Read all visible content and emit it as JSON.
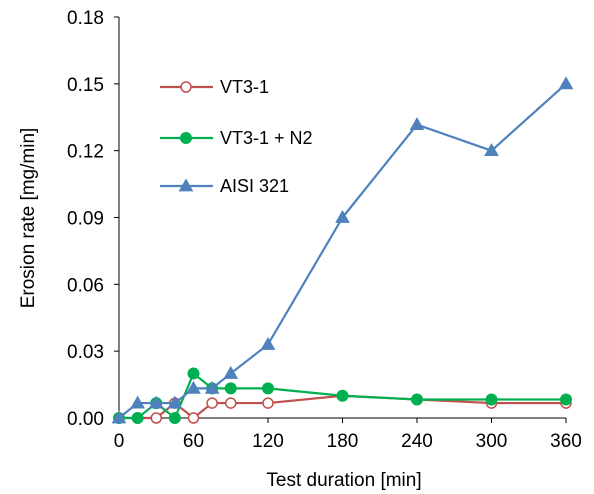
{
  "chart_data": {
    "type": "line",
    "title": "",
    "xlabel": "Test duration [min]",
    "ylabel": "Erosion rate [mg/min]",
    "xlim": [
      0,
      360
    ],
    "ylim": [
      0,
      0.18
    ],
    "x_ticks": [
      0,
      60,
      120,
      180,
      240,
      300,
      360
    ],
    "x_tick_labels": [
      "0",
      "60",
      "120",
      "180",
      "240",
      "300",
      "360"
    ],
    "y_ticks": [
      0.0,
      0.03,
      0.06,
      0.09,
      0.12,
      0.15,
      0.18
    ],
    "y_tick_labels": [
      "0.00",
      "0.03",
      "0.06",
      "0.09",
      "0.12",
      "0.15",
      "0.18"
    ],
    "grid": false,
    "legend_position": "left",
    "series": [
      {
        "name": "VT3-1",
        "color": "#C0504D",
        "marker": "open-circle",
        "x": [
          0,
          15,
          30,
          45,
          60,
          75,
          90,
          120,
          180,
          240,
          300,
          360
        ],
        "y": [
          0.0,
          0.0,
          0.0,
          0.0067,
          0.0,
          0.0067,
          0.0067,
          0.0067,
          0.01,
          0.0083,
          0.0067,
          0.0067
        ]
      },
      {
        "name": "VT3-1 + N2",
        "color": "#00B050",
        "marker": "filled-circle",
        "x": [
          0,
          15,
          30,
          45,
          60,
          75,
          90,
          120,
          180,
          240,
          300,
          360
        ],
        "y": [
          0.0,
          0.0,
          0.0067,
          0.0,
          0.02,
          0.0133,
          0.0133,
          0.0133,
          0.01,
          0.0083,
          0.0083,
          0.0083
        ]
      },
      {
        "name": "AISI 321",
        "color": "#4F81BD",
        "marker": "filled-triangle",
        "x": [
          0,
          15,
          30,
          45,
          60,
          75,
          90,
          120,
          180,
          240,
          300,
          360
        ],
        "y": [
          0.0,
          0.0067,
          0.0067,
          0.0067,
          0.0133,
          0.0133,
          0.02,
          0.033,
          0.09,
          0.1317,
          0.12,
          0.15
        ]
      }
    ]
  }
}
